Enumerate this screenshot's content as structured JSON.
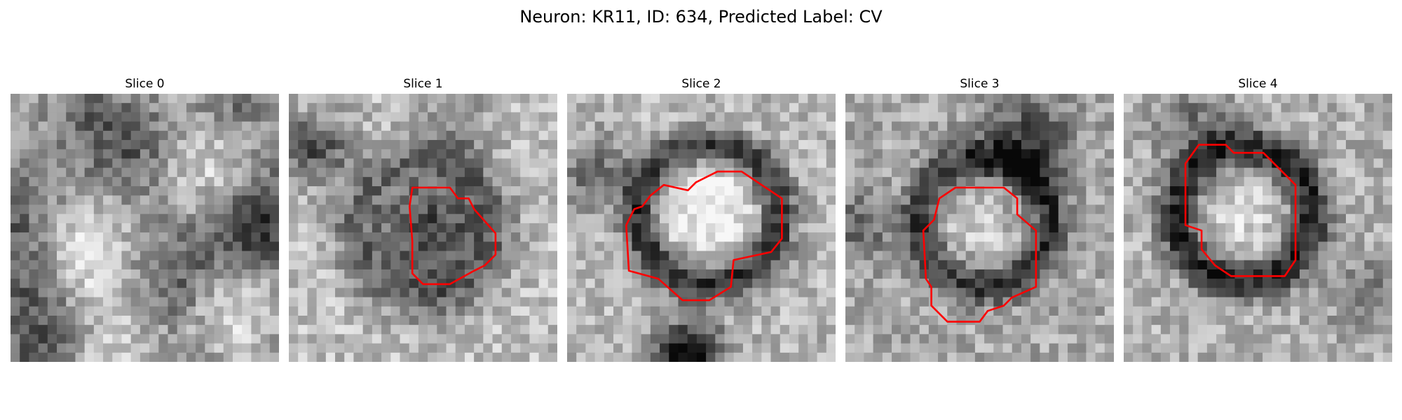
{
  "figure": {
    "title": "Neuron: KR11, ID: 634, Predicted Label: CV"
  },
  "slices": [
    {
      "title": "Slice 0",
      "has_contour": false
    },
    {
      "title": "Slice 1",
      "has_contour": true
    },
    {
      "title": "Slice 2",
      "has_contour": true
    },
    {
      "title": "Slice 3",
      "has_contour": true
    },
    {
      "title": "Slice 4",
      "has_contour": true
    }
  ],
  "colors": {
    "contour": "#ff0000",
    "background": "#ffffff"
  }
}
